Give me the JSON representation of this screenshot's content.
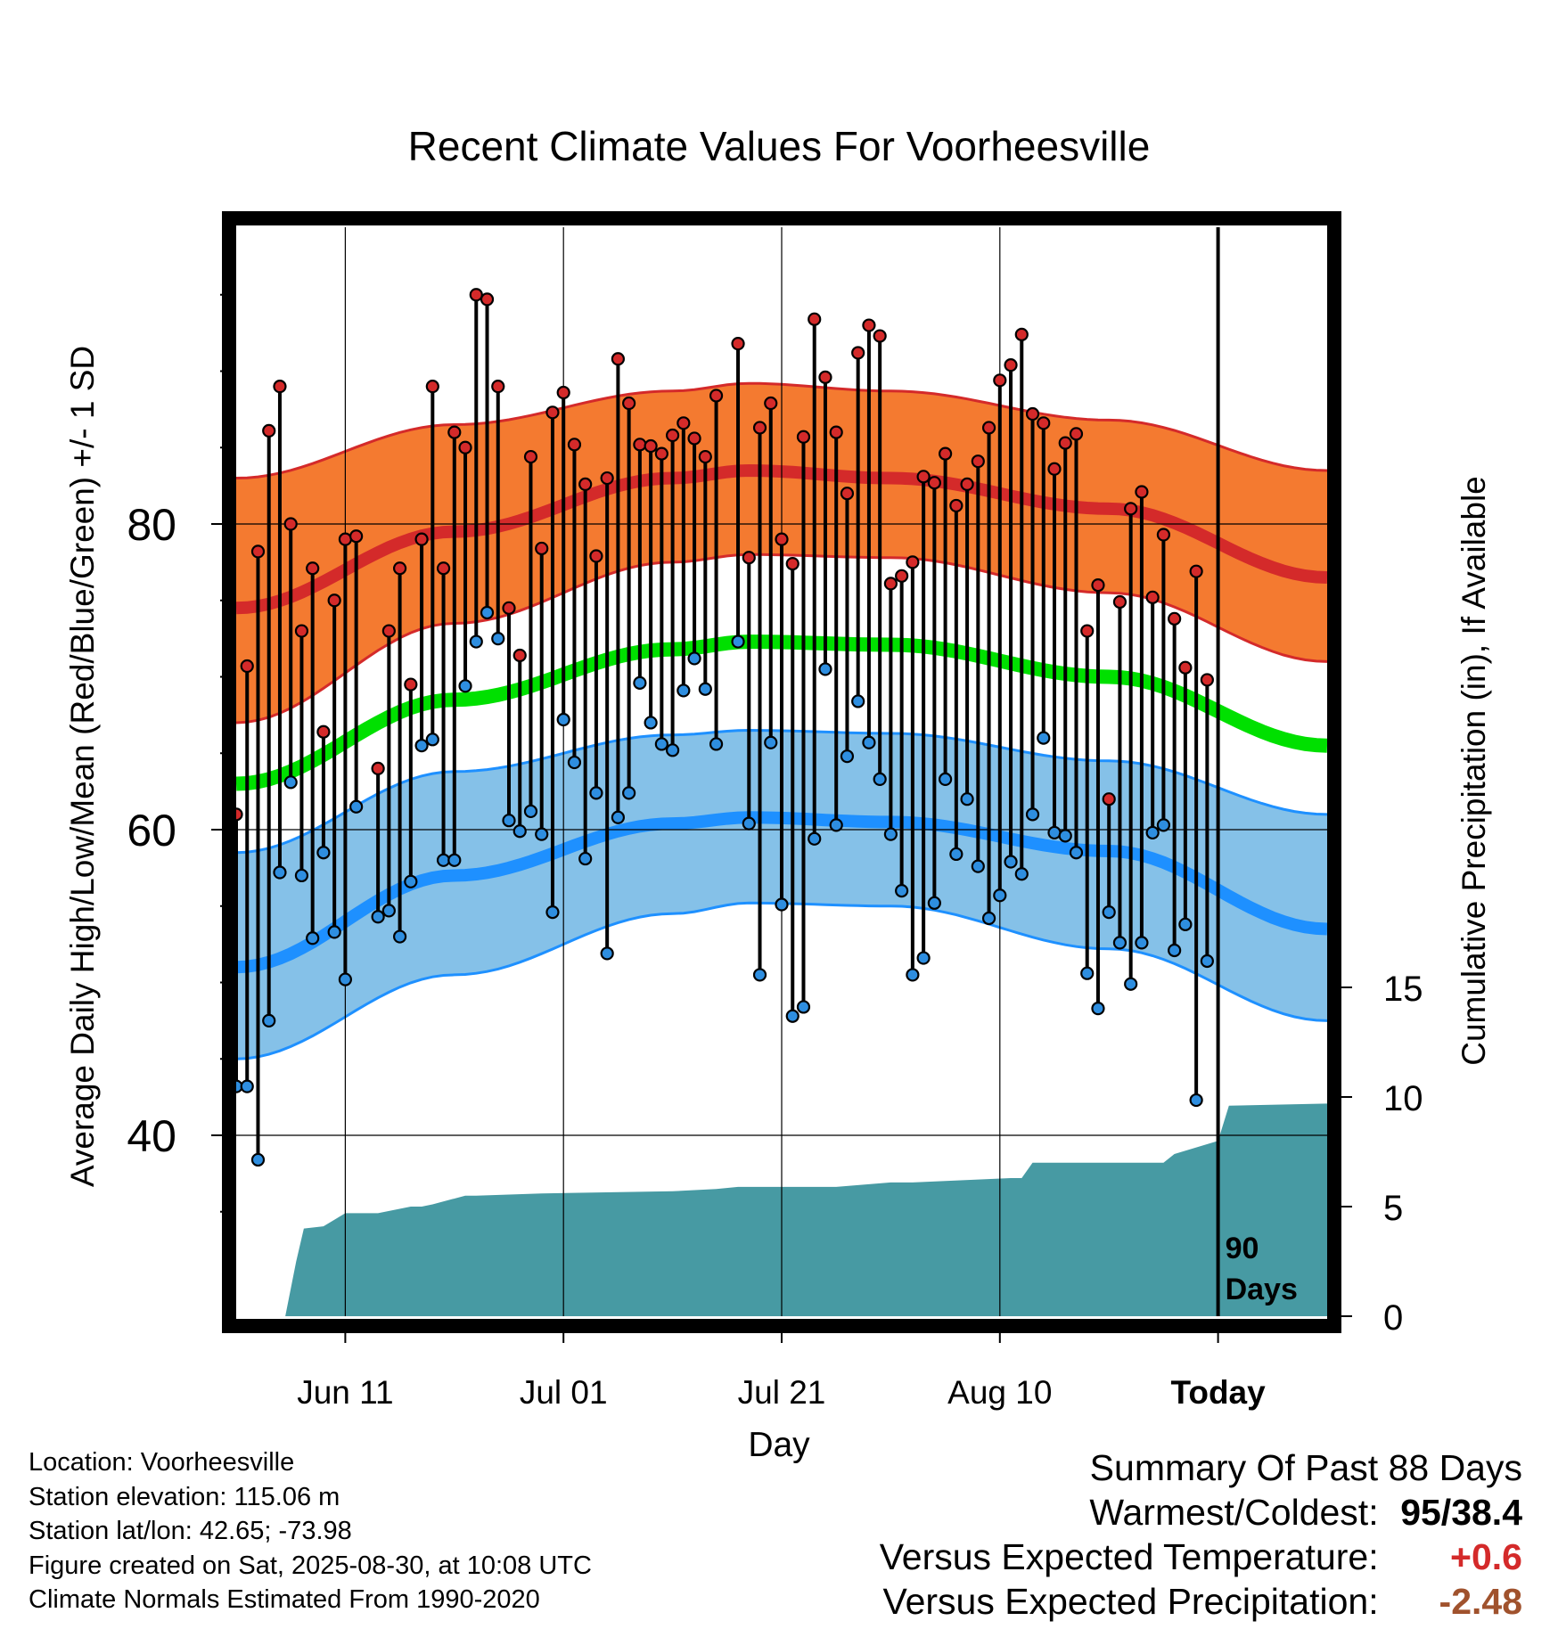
{
  "title": "Recent Climate Values For Voorheesville",
  "chart_data": {
    "type": "scatter",
    "title": "Recent Climate Values For Voorheesville",
    "xlabel": "Day",
    "ylabel_left": "Average Daily High/Low/Mean (Red/Blue/Green) +/- 1 SD",
    "ylabel_right": "Cumulative Precipitation (in), If Available",
    "x_ticks": [
      "Jun 11",
      "Jul 01",
      "Jul 21",
      "Aug 10",
      "Today"
    ],
    "y_ticks_left": [
      40,
      60,
      80
    ],
    "y_ticks_right": [
      0,
      5,
      10,
      15
    ],
    "today_marker_label": [
      "90",
      "Days"
    ],
    "x_range_days": [
      0,
      100
    ],
    "ylim_left": [
      28,
      101
    ],
    "ylim_right": [
      0,
      45
    ],
    "normals": {
      "high_mean": {
        "x": [
          0,
          20,
          40,
          47,
          60,
          80,
          100
        ],
        "y": [
          74.5,
          79.5,
          83,
          83.5,
          83,
          81,
          76.5
        ]
      },
      "high_upper": {
        "x": [
          0,
          20,
          40,
          47,
          60,
          80,
          100
        ],
        "y": [
          83,
          86.5,
          88.7,
          89.2,
          88.7,
          86.8,
          83.5
        ]
      },
      "high_lower": {
        "x": [
          0,
          20,
          40,
          47,
          60,
          80,
          100
        ],
        "y": [
          67,
          73.5,
          77.5,
          78,
          77.8,
          75.5,
          71
        ]
      },
      "mean": {
        "x": [
          0,
          20,
          40,
          47,
          60,
          80,
          100
        ],
        "y": [
          63,
          68.5,
          71.8,
          72.3,
          72.1,
          70,
          65.5
        ]
      },
      "low_mean": {
        "x": [
          0,
          20,
          40,
          47,
          60,
          80,
          100
        ],
        "y": [
          51,
          57,
          60.4,
          60.8,
          60.5,
          58.6,
          53.5
        ]
      },
      "low_upper": {
        "x": [
          0,
          20,
          40,
          47,
          60,
          80,
          100
        ],
        "y": [
          58.5,
          63.8,
          66.2,
          66.5,
          66.3,
          64.5,
          61
        ]
      },
      "low_lower": {
        "x": [
          0,
          20,
          40,
          47,
          60,
          80,
          100
        ],
        "y": [
          45,
          50.5,
          54.5,
          55.2,
          55,
          52.2,
          47.5
        ]
      }
    },
    "series": [
      {
        "name": "Daily High",
        "values": [
          61,
          70.7,
          78.2,
          86.1,
          89,
          80,
          73,
          77.1,
          66.4,
          75,
          79,
          79.2,
          null,
          64,
          73,
          77.1,
          69.5,
          79,
          89,
          77.1,
          86,
          85,
          95,
          94.7,
          89,
          74.5,
          71.4,
          84.4,
          78.4,
          87.3,
          88.6,
          85.2,
          82.6,
          77.9,
          83,
          90.8,
          87.9,
          85.2,
          85.1,
          84.6,
          85.8,
          86.6,
          85.6,
          84.4,
          88.4,
          null,
          91.8,
          77.8,
          86.3,
          87.9,
          79,
          77.4,
          85.7,
          93.4,
          89.6,
          86,
          82,
          91.2,
          93,
          92.3,
          76.1,
          76.6,
          77.5,
          83.1,
          82.7,
          84.6,
          81.2,
          82.6,
          84.1,
          86.3,
          89.4,
          90.4,
          92.4,
          87.2,
          86.6,
          83.6,
          85.3,
          85.9,
          73,
          76,
          62,
          74.9,
          81,
          82.1,
          75.2,
          79.3,
          73.8,
          70.6,
          76.9,
          69.8
        ]
      },
      {
        "name": "Daily Low",
        "values": [
          43.2,
          43.2,
          38.4,
          47.5,
          57.2,
          63.1,
          57,
          52.9,
          58.5,
          53.3,
          50.2,
          61.5,
          null,
          54.3,
          54.7,
          53,
          56.6,
          65.5,
          65.9,
          58,
          58,
          69.4,
          72.3,
          74.2,
          72.5,
          60.6,
          59.9,
          61.2,
          59.7,
          54.6,
          67.2,
          64.4,
          58.1,
          62.4,
          51.9,
          60.8,
          62.4,
          69.6,
          67,
          65.6,
          65.2,
          69.1,
          71.2,
          69.2,
          65.6,
          null,
          72.3,
          60.4,
          50.5,
          65.7,
          55.1,
          47.8,
          48.4,
          59.4,
          70.5,
          60.3,
          64.8,
          68.4,
          65.7,
          63.3,
          59.7,
          56,
          50.5,
          51.6,
          55.2,
          63.3,
          58.4,
          62,
          57.6,
          54.2,
          55.7,
          57.9,
          57.1,
          61,
          66,
          59.8,
          59.6,
          58.5,
          50.6,
          48.3,
          54.6,
          52.6,
          49.9,
          52.6,
          59.8,
          60.3,
          52.1,
          53.8,
          42.3,
          51.4
        ]
      },
      {
        "name": "Cumulative Precipitation",
        "x": [
          0,
          4,
          4.5,
          5.5,
          6.2,
          8,
          9,
          10,
          11,
          12,
          13,
          16,
          17,
          18,
          21,
          22,
          28,
          40,
          44,
          46,
          55,
          60,
          62,
          71,
          72,
          73,
          85,
          86,
          90,
          91,
          100
        ],
        "values": [
          0,
          0,
          0,
          2.5,
          4,
          4.1,
          4.4,
          4.7,
          4.7,
          4.7,
          4.7,
          5,
          5,
          5.1,
          5.5,
          5.5,
          5.6,
          5.7,
          5.8,
          5.9,
          5.9,
          6.1,
          6.1,
          6.3,
          6.3,
          7,
          7,
          7.4,
          8,
          9.6,
          9.7
        ]
      }
    ]
  },
  "info": {
    "location": "Location: Voorheesville",
    "elevation": "Station elevation: 115.06 m",
    "latlon": "Station lat/lon: 42.65; -73.98",
    "created": "Figure created on Sat, 2025-08-30, at 10:08 UTC",
    "normals_note": "Climate Normals Estimated From 1990-2020"
  },
  "summary": {
    "heading": "Summary Of Past 88 Days",
    "warm_cold_label": "Warmest/Coldest:",
    "warm_cold_value": "95/38.4",
    "temp_label": "Versus Expected Temperature:",
    "temp_value": "+0.6",
    "precip_label": "Versus Expected Precipitation:",
    "precip_value": "-2.48"
  },
  "colors": {
    "high_band": "#f47a30",
    "high_line": "#d42a2a",
    "mean_line": "#00e000",
    "low_band": "#85c1e8",
    "low_line": "#1e90ff",
    "precip_fill": "#479aa3",
    "high_dot": "#d42a2a",
    "low_dot": "#2e8ee0",
    "temp_value": "#d42a2a",
    "precip_value": "#a0522d"
  }
}
